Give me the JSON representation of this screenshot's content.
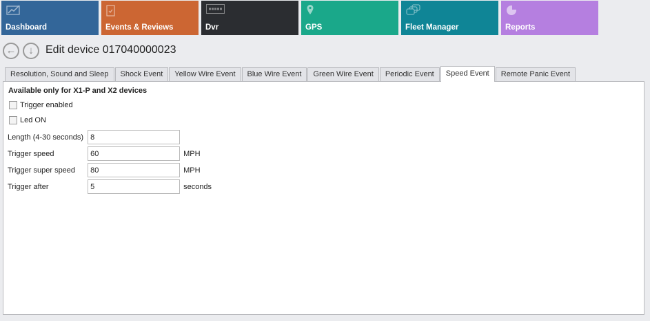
{
  "tiles": [
    {
      "label": "Dashboard",
      "icon": "chart-line-icon",
      "color": "#336699"
    },
    {
      "label": "Events & Reviews",
      "icon": "clipboard-check-icon",
      "color": "#cc6633"
    },
    {
      "label": "Dvr",
      "icon": "merge-logo-icon",
      "color": "#2b2d31"
    },
    {
      "label": "GPS",
      "icon": "map-pin-icon",
      "color": "#1aa88a"
    },
    {
      "label": "Fleet Manager",
      "icon": "vehicles-icon",
      "color": "#0f8596"
    },
    {
      "label": "Reports",
      "icon": "pie-chart-icon",
      "color": "#b57fe0"
    }
  ],
  "header": {
    "title": "Edit device 017040000023",
    "back_icon": "arrow-left-icon",
    "down_icon": "arrow-down-icon"
  },
  "tabs": [
    "Resolution, Sound and Sleep",
    "Shock Event",
    "Yellow Wire Event",
    "Blue Wire Event",
    "Green Wire Event",
    "Periodic Event",
    "Speed Event",
    "Remote Panic Event"
  ],
  "active_tab": "Speed Event",
  "form": {
    "heading": "Available only for X1-P and X2 devices",
    "trigger_enabled": {
      "label": "Trigger enabled",
      "checked": false
    },
    "led_on": {
      "label": "Led ON",
      "checked": false
    },
    "fields": [
      {
        "label": "Length (4-30 seconds)",
        "value": "8",
        "unit": ""
      },
      {
        "label": "Trigger speed",
        "value": "60",
        "unit": "MPH"
      },
      {
        "label": "Trigger super speed",
        "value": "80",
        "unit": "MPH"
      },
      {
        "label": "Trigger after",
        "value": "5",
        "unit": "seconds"
      }
    ]
  }
}
